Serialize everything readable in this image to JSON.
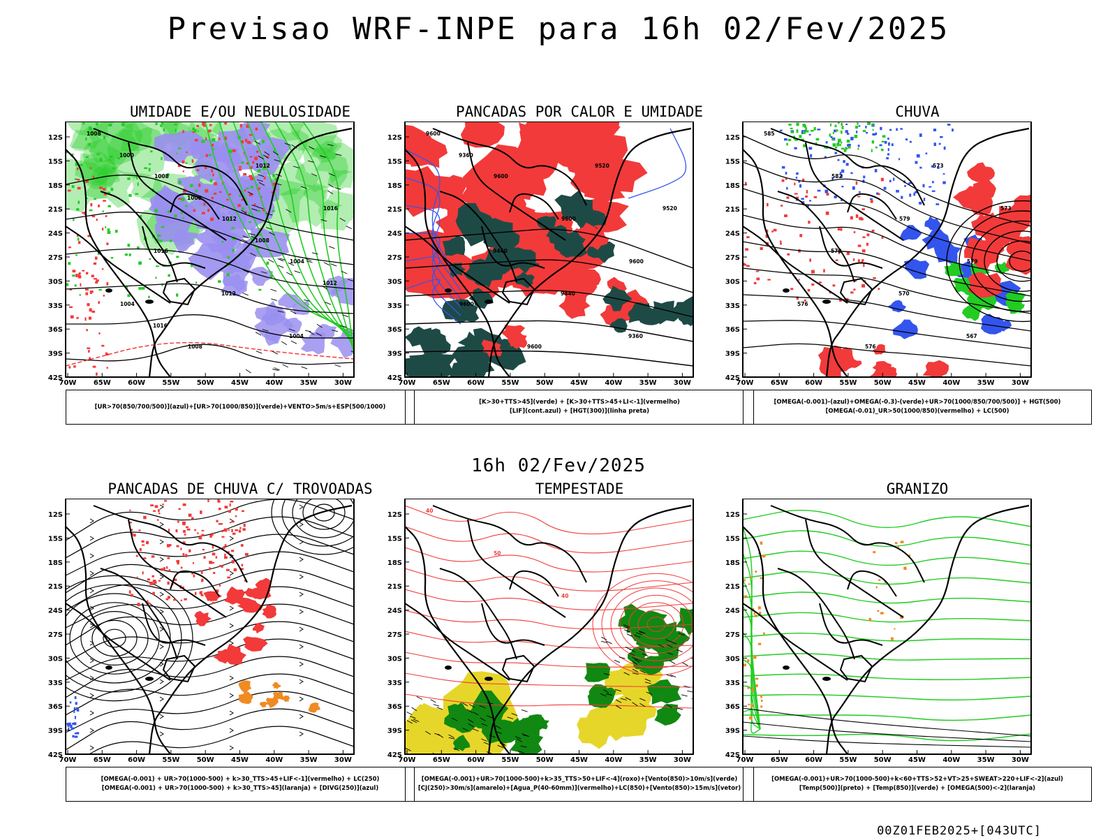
{
  "main_title": "Previsao WRF-INPE  para 16h 02/Fev/2025",
  "mid_title": "16h 02/Fev/2025",
  "footer": "00Z01FEB2025+[043UTC]",
  "colors": {
    "red": "#f23a3a",
    "green": "#22cc22",
    "blue": "#3355ee",
    "lavender": "#9a8ff0",
    "darkteal": "#1e4a46",
    "yellow": "#e6d62a",
    "orange": "#f08a22",
    "darkgreen": "#118811"
  },
  "chart_data": [
    {
      "type": "map",
      "title": "UMIDADE E/OU NEBULOSIDADE",
      "lat_ticks": [
        "12S",
        "15S",
        "18S",
        "21S",
        "24S",
        "27S",
        "30S",
        "33S",
        "36S",
        "39S",
        "42S"
      ],
      "lon_ticks": [
        "70W",
        "65W",
        "60W",
        "55W",
        "50W",
        "45W",
        "40W",
        "35W",
        "30W"
      ],
      "legend": [
        "[UR>70(850/700/500)](azul)+[UR>70(1000/850)](verde)+VENTO>5m/s+ESP(500/1000)"
      ],
      "contour_labels": [
        "1008",
        "1008",
        "1012",
        "1004",
        "1004",
        "1008",
        "1012",
        "1016",
        "1016",
        "1012",
        "1004",
        "1000",
        "1008",
        "1008",
        "1012",
        "1016"
      ]
    },
    {
      "type": "map",
      "title": "PANCADAS POR CALOR E UMIDADE",
      "lat_ticks": [
        "12S",
        "15S",
        "18S",
        "21S",
        "24S",
        "27S",
        "30S",
        "33S",
        "36S",
        "39S",
        "42S"
      ],
      "lon_ticks": [
        "70W",
        "65W",
        "60W",
        "55W",
        "50W",
        "45W",
        "40W",
        "35W",
        "30W"
      ],
      "legend": [
        "[K>30+TTS>45](verde) + [K>30+TTS>45+LI<-1](vermelho)",
        "[LIF](cont.azul) + [HGT(300)](linha preta)"
      ],
      "contour_labels": [
        "9600",
        "9600",
        "9600",
        "9600",
        "9600",
        "9600",
        "9520",
        "9520",
        "9440",
        "9440",
        "9360",
        "9360"
      ]
    },
    {
      "type": "map",
      "title": "CHUVA",
      "lat_ticks": [
        "12S",
        "15S",
        "18S",
        "21S",
        "24S",
        "27S",
        "30S",
        "33S",
        "36S",
        "39S",
        "42S"
      ],
      "lon_ticks": [
        "70W",
        "65W",
        "60W",
        "55W",
        "50W",
        "45W",
        "40W",
        "35W",
        "30W"
      ],
      "legend": [
        "[OMEGA(-0.001)-(azul)+OMEGA(-0.3)-(verde)+UR>70(1000/850/700/500)] + HGT(500)",
        "[OMEGA(-0.01)_UR>50(1000/850)(vermelho) + LC(500)"
      ],
      "contour_labels": [
        "585",
        "582",
        "579",
        "579",
        "576",
        "576",
        "573",
        "573",
        "570",
        "570",
        "567"
      ]
    },
    {
      "type": "map",
      "title": "PANCADAS DE CHUVA C/ TROVOADAS",
      "lat_ticks": [
        "12S",
        "15S",
        "18S",
        "21S",
        "24S",
        "27S",
        "30S",
        "33S",
        "36S",
        "39S",
        "42S"
      ],
      "lon_ticks": [
        "70W",
        "65W",
        "60W",
        "55W",
        "50W",
        "45W",
        "40W",
        "35W",
        "30W"
      ],
      "legend": [
        "[OMEGA(-0.001) + UR>70(1000-500) + k>30_TTS>45+LIF<-1](vermelho) + LC(250)",
        "[OMEGA(-0.001) + UR>70(1000-500) + k>30_TTS>45](laranja) + [DIVG(250)](azul)"
      ]
    },
    {
      "type": "map",
      "title": "TEMPESTADE",
      "lat_ticks": [
        "12S",
        "15S",
        "18S",
        "21S",
        "24S",
        "27S",
        "30S",
        "33S",
        "36S",
        "39S",
        "42S"
      ],
      "lon_ticks": [
        "70W",
        "65W",
        "60W",
        "55W",
        "50W",
        "45W",
        "40W",
        "35W",
        "30W"
      ],
      "legend": [
        "[OMEGA(-0.001)+UR>70(1000-500)+k>35_TTS>50+LIF<-4](roxo)+[Vento(850)>10m/s](verde)",
        "[CJ(250)>30m/s](amarelo)+[Agua_P(40-60mm)](vermelho)+LC(850)+[Vento(850)>15m/s](vetor)"
      ],
      "contour_labels": [
        "40",
        "50",
        "40"
      ]
    },
    {
      "type": "map",
      "title": "GRANIZO",
      "lat_ticks": [
        "12S",
        "15S",
        "18S",
        "21S",
        "24S",
        "27S",
        "30S",
        "33S",
        "36S",
        "39S",
        "42S"
      ],
      "lon_ticks": [
        "70W",
        "65W",
        "60W",
        "55W",
        "50W",
        "45W",
        "40W",
        "35W",
        "30W"
      ],
      "legend": [
        "[OMEGA(-0.001)+UR>70(1000-500)+k<60+TTS>52+VT>25+SWEAT>220+LIF<-2](azul)",
        "[Temp(500)](preto) + [Temp(850)](verde) + [OMEGA(500)<-2](laranja)"
      ]
    }
  ]
}
